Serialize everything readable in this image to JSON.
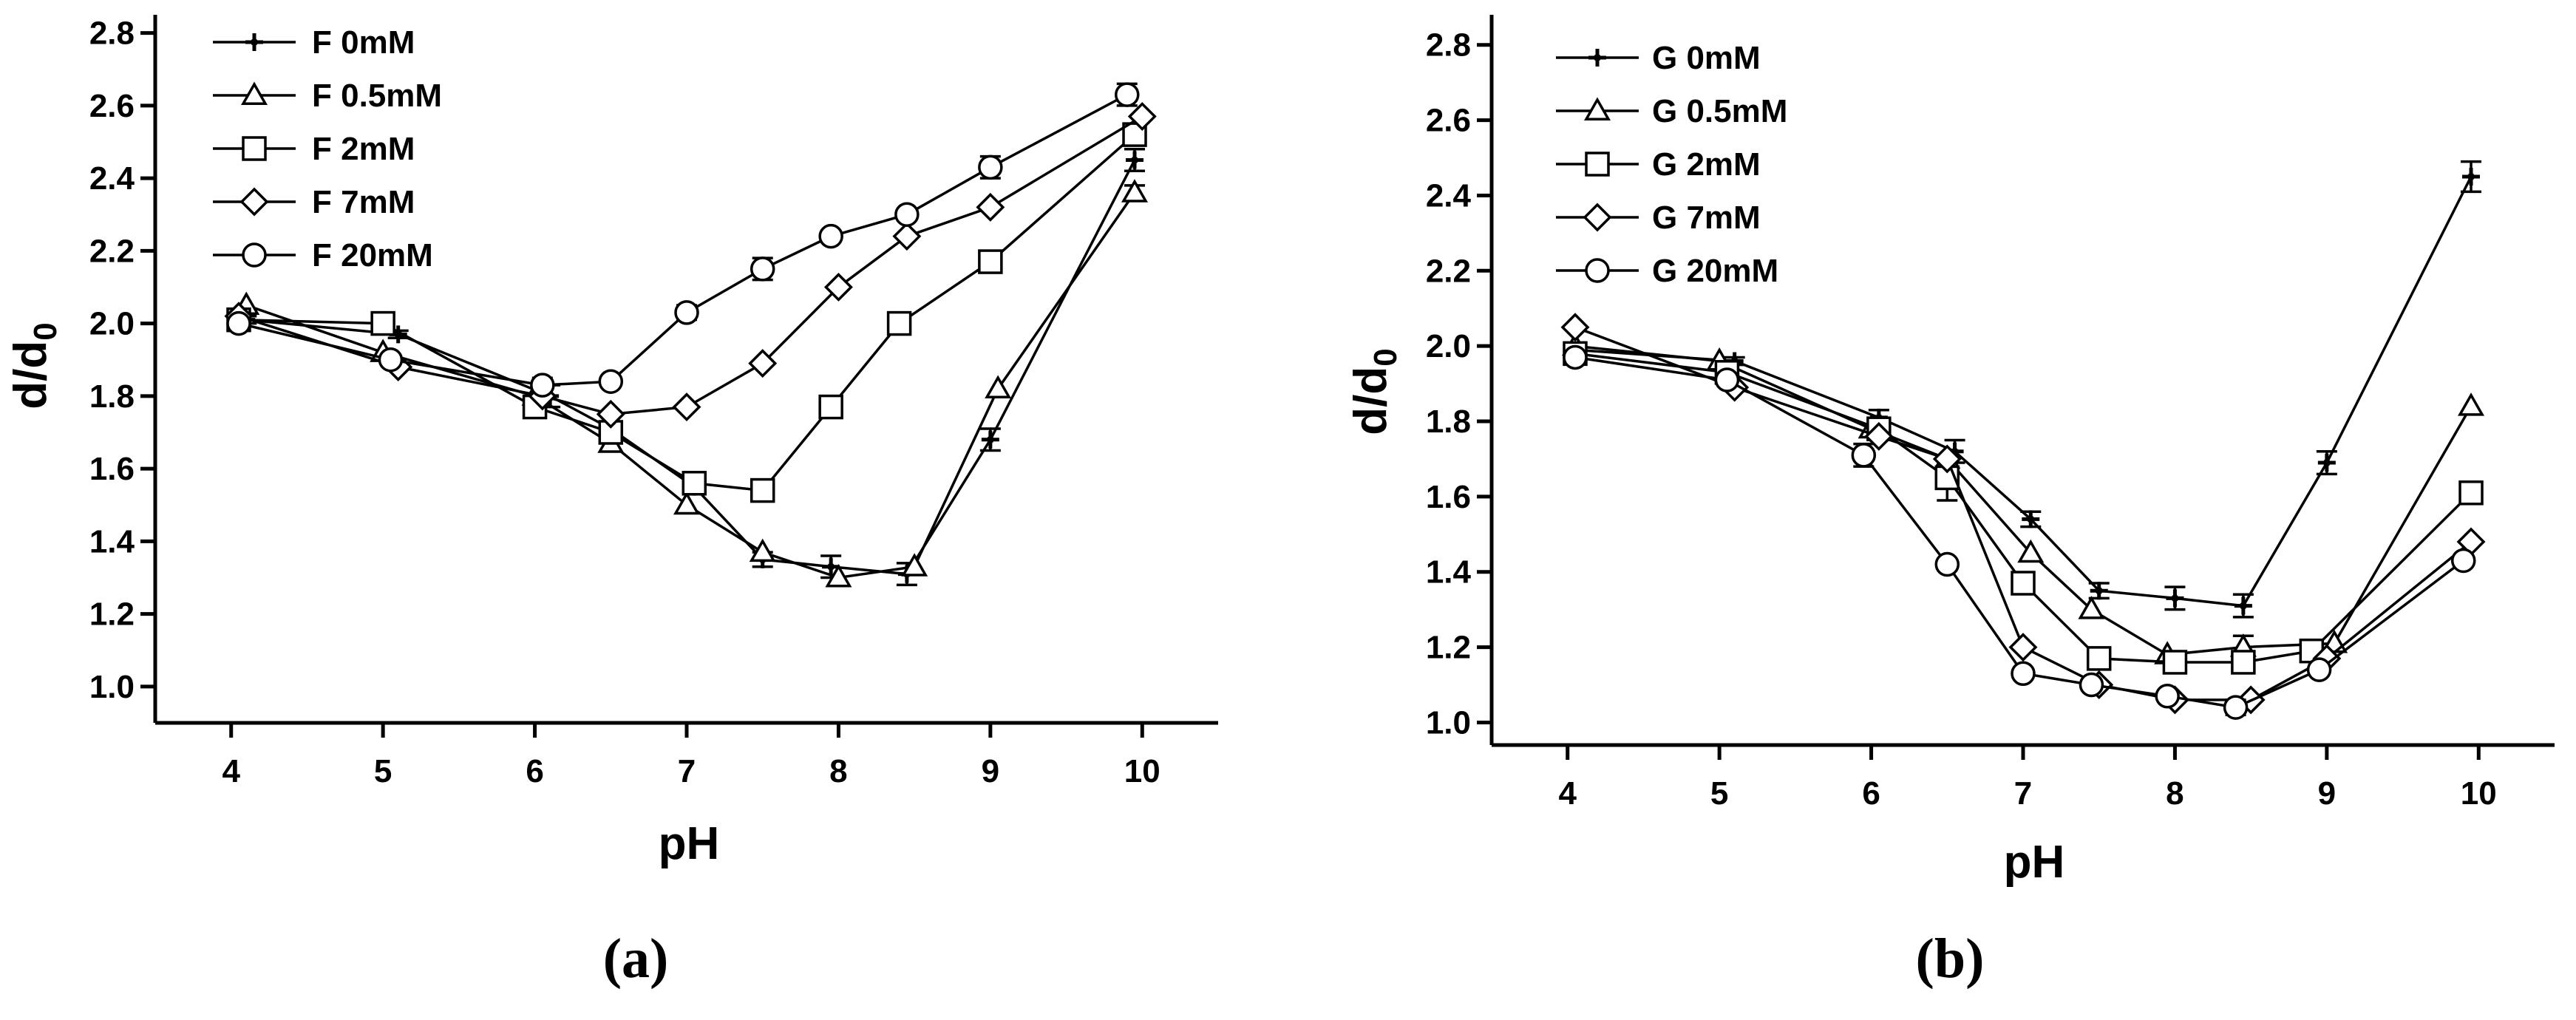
{
  "chart_data": [
    {
      "type": "line",
      "caption_letter": "a",
      "xlabel": "pH",
      "ylabel_base": "d/d",
      "ylabel_sub": "0",
      "xlim": [
        3.5,
        10.5
      ],
      "ylim": [
        0.9,
        2.85
      ],
      "xticks": [
        4,
        5,
        6,
        7,
        8,
        9,
        10
      ],
      "yticks": [
        1.0,
        1.2,
        1.4,
        1.6,
        1.8,
        2.0,
        2.2,
        2.4,
        2.6,
        2.8
      ],
      "ytick_labels": [
        "1.0",
        "1.2",
        "1.4",
        "1.6",
        "1.8",
        "2.0",
        "2.2",
        "2.4",
        "2.6",
        "2.8"
      ],
      "legend_position": "top-left",
      "series": [
        {
          "name": "F 0mM",
          "marker": "plus",
          "x": [
            4.1,
            5.1,
            6.1,
            6.5,
            7.05,
            7.5,
            7.95,
            8.45,
            9.0,
            9.95
          ],
          "y": [
            2.01,
            1.97,
            1.8,
            1.71,
            1.55,
            1.35,
            1.33,
            1.31,
            1.68,
            2.45
          ],
          "err": [
            0.01,
            0.01,
            0.03,
            0.02,
            0.02,
            0.02,
            0.03,
            0.03,
            0.03,
            0.03
          ]
        },
        {
          "name": "F 0.5mM",
          "marker": "triangle",
          "x": [
            4.1,
            5.0,
            6.0,
            6.5,
            7.0,
            7.5,
            8.0,
            8.5,
            9.05,
            9.95
          ],
          "y": [
            2.05,
            1.92,
            1.8,
            1.67,
            1.5,
            1.37,
            1.3,
            1.33,
            1.82,
            2.36
          ],
          "err": [
            0,
            0,
            0,
            0,
            0,
            0,
            0,
            0,
            0,
            0.02
          ]
        },
        {
          "name": "F 2mM",
          "marker": "square",
          "x": [
            4.05,
            5.0,
            6.0,
            6.5,
            7.05,
            7.5,
            7.95,
            8.4,
            9.0,
            9.95
          ],
          "y": [
            2.01,
            2.0,
            1.77,
            1.7,
            1.56,
            1.54,
            1.77,
            2.0,
            2.17,
            2.52
          ],
          "err": [
            0,
            0,
            0.02,
            0,
            0.01,
            0,
            0,
            0,
            0,
            0.02
          ]
        },
        {
          "name": "F 7mM",
          "marker": "diamond",
          "x": [
            4.05,
            5.1,
            6.05,
            6.5,
            7.0,
            7.5,
            8.0,
            8.45,
            9.0,
            10.0
          ],
          "y": [
            2.02,
            1.88,
            1.8,
            1.75,
            1.77,
            1.89,
            2.1,
            2.24,
            2.32,
            2.57
          ],
          "err": [
            0,
            0,
            0,
            0,
            0,
            0,
            0,
            0,
            0,
            0
          ]
        },
        {
          "name": "F 20mM",
          "marker": "circle",
          "x": [
            4.05,
            5.05,
            6.05,
            6.5,
            7.0,
            7.5,
            7.95,
            8.45,
            9.0,
            9.9
          ],
          "y": [
            2.0,
            1.9,
            1.83,
            1.84,
            2.03,
            2.15,
            2.24,
            2.3,
            2.43,
            2.63
          ],
          "err": [
            0,
            0,
            0.02,
            0,
            0.02,
            0.03,
            0,
            0,
            0.03,
            0.03
          ]
        }
      ]
    },
    {
      "type": "line",
      "caption_letter": "b",
      "xlabel": "pH",
      "ylabel_base": "d/d",
      "ylabel_sub": "0",
      "xlim": [
        3.5,
        10.5
      ],
      "ylim": [
        0.94,
        2.88
      ],
      "xticks": [
        4,
        5,
        6,
        7,
        8,
        9,
        10
      ],
      "yticks": [
        1.0,
        1.2,
        1.4,
        1.6,
        1.8,
        2.0,
        2.2,
        2.4,
        2.6,
        2.8
      ],
      "ytick_labels": [
        "1.0",
        "1.2",
        "1.4",
        "1.6",
        "1.8",
        "2.0",
        "2.2",
        "2.4",
        "2.6",
        "2.8"
      ],
      "legend_position": "top-left",
      "series": [
        {
          "name": "G 0mM",
          "marker": "plus",
          "x": [
            4.05,
            5.1,
            6.05,
            6.55,
            7.05,
            7.5,
            8.0,
            8.45,
            9.0,
            9.95
          ],
          "y": [
            1.99,
            1.96,
            1.81,
            1.72,
            1.54,
            1.35,
            1.33,
            1.31,
            1.69,
            2.45
          ],
          "err": [
            0.01,
            0.01,
            0.02,
            0.03,
            0.02,
            0.02,
            0.03,
            0.03,
            0.03,
            0.04
          ]
        },
        {
          "name": "G 0.5mM",
          "marker": "triangle",
          "x": [
            4.05,
            5.0,
            6.0,
            6.5,
            7.05,
            7.45,
            7.95,
            8.45,
            9.05,
            9.95
          ],
          "y": [
            2.0,
            1.96,
            1.78,
            1.7,
            1.45,
            1.3,
            1.18,
            1.2,
            1.21,
            1.84
          ],
          "err": [
            0,
            0,
            0,
            0,
            0,
            0,
            0,
            0.03,
            0,
            0
          ]
        },
        {
          "name": "G 2mM",
          "marker": "square",
          "x": [
            4.05,
            5.05,
            6.05,
            6.5,
            7.0,
            7.5,
            8.0,
            8.45,
            8.9,
            9.95
          ],
          "y": [
            1.98,
            1.93,
            1.78,
            1.65,
            1.37,
            1.17,
            1.16,
            1.16,
            1.19,
            1.61
          ],
          "err": [
            0,
            0,
            0,
            0.06,
            0,
            0,
            0,
            0,
            0,
            0
          ]
        },
        {
          "name": "G 7mM",
          "marker": "diamond",
          "x": [
            4.05,
            5.1,
            6.05,
            6.5,
            7.0,
            7.5,
            8.0,
            8.5,
            9.0,
            9.95
          ],
          "y": [
            2.05,
            1.89,
            1.76,
            1.7,
            1.2,
            1.1,
            1.06,
            1.06,
            1.17,
            1.48
          ],
          "err": [
            0,
            0,
            0,
            0,
            0,
            0,
            0,
            0,
            0,
            0
          ]
        },
        {
          "name": "G 20mM",
          "marker": "circle",
          "x": [
            4.05,
            5.05,
            5.95,
            6.5,
            7.0,
            7.45,
            7.95,
            8.4,
            8.95,
            9.9
          ],
          "y": [
            1.97,
            1.91,
            1.71,
            1.42,
            1.13,
            1.1,
            1.07,
            1.04,
            1.14,
            1.43
          ],
          "err": [
            0,
            0,
            0.03,
            0,
            0,
            0,
            0,
            0.02,
            0,
            0
          ]
        }
      ]
    }
  ]
}
